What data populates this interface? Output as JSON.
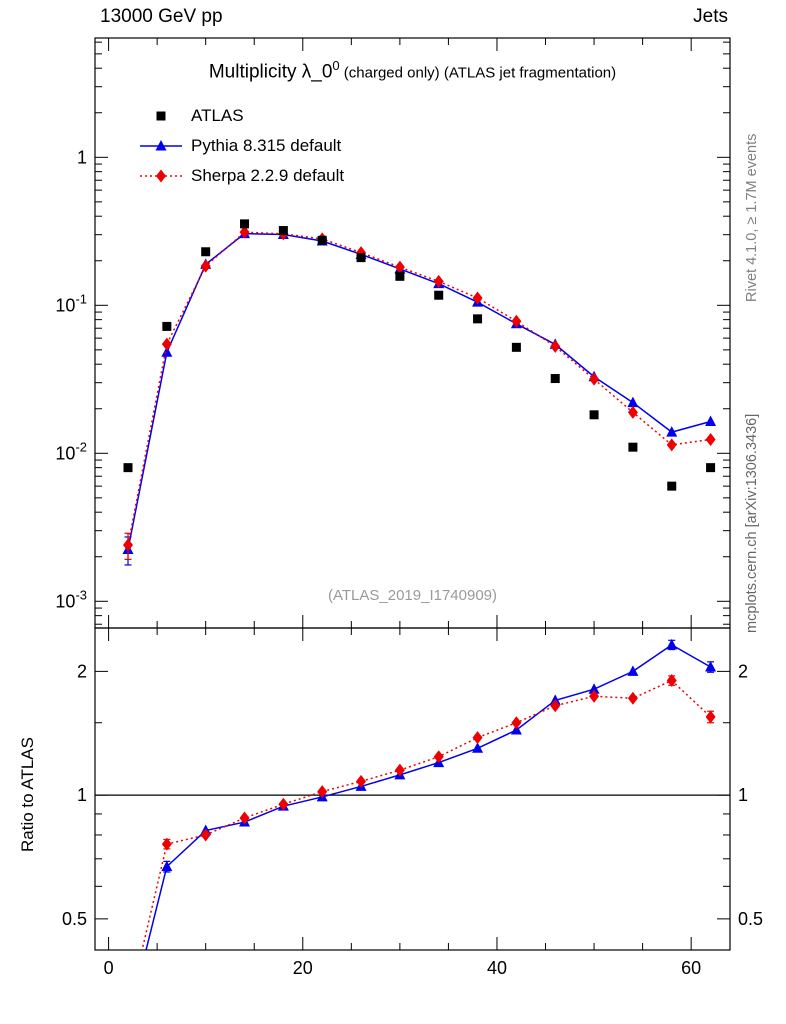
{
  "header": {
    "left": "13000 GeV pp",
    "right": "Jets"
  },
  "title": {
    "main": "Multiplicity λ_0",
    "sup": "0",
    "suffix": " (charged only) (ATLAS jet fragmentation)"
  },
  "watermark": "(ATLAS_2019_I1740909)",
  "side_notes": {
    "top_right": "Rivet 4.1.0, ≥ 1.7M events",
    "bottom_right": "mcplots.cern.ch [arXiv:1306.3436]"
  },
  "ratio_axis_label": "Ratio to ATLAS",
  "legend": [
    {
      "label": "ATLAS",
      "marker": "square",
      "color": "#000000",
      "line": "none"
    },
    {
      "label": "Pythia 8.315 default",
      "marker": "triangle",
      "color": "#0000ee",
      "line": "solid"
    },
    {
      "label": "Sherpa 2.2.9 default",
      "marker": "diamond",
      "color": "#ee0000",
      "line": "dotted"
    }
  ],
  "chart_data": {
    "type": "line",
    "title": "Multiplicity λ_0^0 (charged only) (ATLAS jet fragmentation)",
    "xlabel": "",
    "ylabel_ratio": "Ratio to ATLAS",
    "xlim": [
      -1.4,
      64
    ],
    "xticks": [
      0,
      20,
      40,
      60
    ],
    "x_minor_step": 5,
    "x": [
      2,
      6,
      10,
      14,
      18,
      22,
      26,
      30,
      34,
      38,
      42,
      46,
      50,
      54,
      58,
      62
    ],
    "top_panel": {
      "yscale": "log",
      "ylim": [
        0.00066,
        6.4
      ],
      "ytick_values": [
        1,
        0.1,
        0.01,
        0.001
      ],
      "ytick_labels": [
        "1",
        "10^-1",
        "10^-2",
        "10^-3"
      ]
    },
    "ratio_panel": {
      "yscale": "log",
      "ylim": [
        0.42,
        2.55
      ],
      "ytick_values": [
        0.5,
        1,
        2
      ],
      "ytick_labels": [
        "0.5",
        "1",
        "2"
      ],
      "minor_ticks": [
        0.6,
        0.7,
        0.8,
        0.9,
        1.5
      ],
      "ref_line": 1
    },
    "series": [
      {
        "key": "atlas",
        "name": "ATLAS",
        "kind": "data",
        "marker": "square",
        "color": "#000000",
        "values": [
          0.008,
          0.072,
          0.23,
          0.355,
          0.32,
          0.275,
          0.21,
          0.157,
          0.117,
          0.081,
          0.052,
          0.032,
          0.0182,
          0.011,
          0.006,
          0.008
        ]
      },
      {
        "key": "pythia",
        "name": "Pythia 8.315 default",
        "kind": "mc",
        "marker": "triangle",
        "color": "#0000ee",
        "line": "solid",
        "values": [
          0.00224,
          0.0482,
          0.189,
          0.305,
          0.301,
          0.272,
          0.221,
          0.176,
          0.14,
          0.105,
          0.075,
          0.0544,
          0.0329,
          0.022,
          0.0139,
          0.0164
        ],
        "ratio": [
          0.28,
          0.67,
          0.82,
          0.86,
          0.94,
          0.99,
          1.05,
          1.12,
          1.2,
          1.3,
          1.44,
          1.7,
          1.81,
          2.0,
          2.32,
          2.05
        ],
        "ratio_err": [
          0.06,
          0.02,
          0.01,
          0.01,
          0.01,
          0.01,
          0.01,
          0.01,
          0.01,
          0.01,
          0.02,
          0.02,
          0.03,
          0.04,
          0.06,
          0.06
        ]
      },
      {
        "key": "sherpa",
        "name": "Sherpa 2.2.9 default",
        "kind": "mc",
        "marker": "diamond",
        "color": "#ee0000",
        "line": "dotted",
        "values": [
          0.0024,
          0.0547,
          0.184,
          0.312,
          0.304,
          0.281,
          0.227,
          0.181,
          0.145,
          0.112,
          0.078,
          0.0528,
          0.0317,
          0.0189,
          0.0114,
          0.0124
        ],
        "ratio": [
          0.3,
          0.76,
          0.8,
          0.88,
          0.95,
          1.02,
          1.08,
          1.15,
          1.24,
          1.38,
          1.5,
          1.65,
          1.74,
          1.72,
          1.9,
          1.55
        ],
        "ratio_err": [
          0.06,
          0.02,
          0.01,
          0.01,
          0.01,
          0.01,
          0.01,
          0.01,
          0.01,
          0.01,
          0.02,
          0.02,
          0.03,
          0.04,
          0.05,
          0.05
        ]
      }
    ]
  }
}
